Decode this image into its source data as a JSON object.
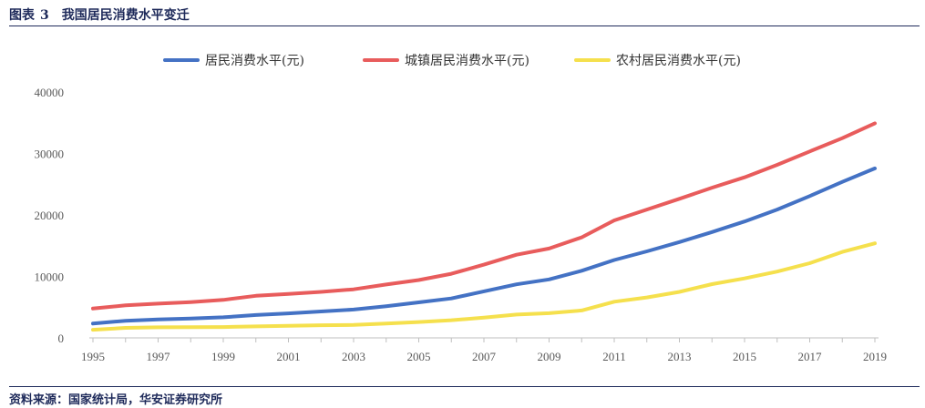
{
  "figure": {
    "label": "图表",
    "number": "3",
    "title": "我国居民消费水平变迁",
    "source": "资料来源：国家统计局，华安证券研究所"
  },
  "colors": {
    "title": "#1e2a5a",
    "series": [
      "#4472c4",
      "#e85c5c",
      "#f5e04d"
    ],
    "axis": "#bfbfbf",
    "tick_text": "#595959"
  },
  "chart_data": {
    "type": "line",
    "title": "",
    "xlabel": "",
    "ylabel": "",
    "ylim": [
      0,
      40000
    ],
    "y_ticks": [
      0,
      10000,
      20000,
      30000,
      40000
    ],
    "x_tick_labels": [
      "1995",
      "1997",
      "1999",
      "2001",
      "2003",
      "2005",
      "2007",
      "2009",
      "2011",
      "2013",
      "2015",
      "2017",
      "2019"
    ],
    "grid": false,
    "legend_position": "top",
    "x": [
      1995,
      1996,
      1997,
      1998,
      1999,
      2000,
      2001,
      2002,
      2003,
      2004,
      2005,
      2006,
      2007,
      2008,
      2009,
      2010,
      2011,
      2012,
      2013,
      2014,
      2015,
      2016,
      2017,
      2018,
      2019
    ],
    "series": [
      {
        "name": "居民消费水平(元)",
        "values": [
          2330,
          2789,
          3002,
          3159,
          3346,
          3721,
          3987,
          4301,
          4606,
          5138,
          5771,
          6416,
          7572,
          8707,
          9514,
          10919,
          12668,
          14074,
          15586,
          17220,
          18929,
          20877,
          23070,
          25378,
          27563
        ]
      },
      {
        "name": "城镇居民消费水平(元)",
        "values": [
          4769,
          5292,
          5566,
          5815,
          6184,
          6850,
          7161,
          7486,
          7901,
          8679,
          9410,
          10423,
          11904,
          13526,
          14538,
          16357,
          19108,
          20869,
          22620,
          24430,
          26119,
          28154,
          30323,
          32483,
          34900
        ]
      },
      {
        "name": "农村居民消费水平(元)",
        "values": [
          1313,
          1626,
          1722,
          1730,
          1766,
          1860,
          1969,
          2062,
          2103,
          2319,
          2579,
          2868,
          3293,
          3795,
          4021,
          4455,
          5880,
          6573,
          7485,
          8744,
          9679,
          10783,
          12145,
          13985,
          15382
        ]
      }
    ]
  }
}
